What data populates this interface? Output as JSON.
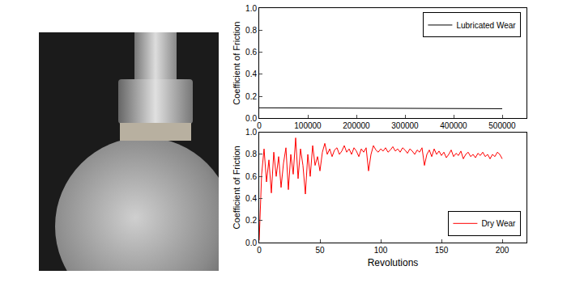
{
  "chart_data": [
    {
      "type": "line",
      "y_label": "Coefficient of Friction",
      "x": [
        0,
        50000,
        100000,
        150000,
        200000,
        250000,
        300000,
        350000,
        400000,
        450000,
        500000
      ],
      "series": [
        {
          "name": "Lubricated Wear",
          "color": "#000000",
          "values": [
            0.095,
            0.094,
            0.093,
            0.092,
            0.091,
            0.09,
            0.09,
            0.089,
            0.088,
            0.088,
            0.087
          ]
        }
      ],
      "xlim": [
        0,
        550000
      ],
      "xticks": [
        0,
        100000,
        200000,
        300000,
        400000,
        500000
      ],
      "ylim": [
        0,
        1
      ],
      "yticks": [
        {
          "value": 0,
          "label": "0.0"
        },
        {
          "value": 0.2,
          "label": "0.2"
        },
        {
          "value": 0.4,
          "label": "0.4"
        },
        {
          "value": 0.6,
          "label": "0.6"
        },
        {
          "value": 0.8,
          "label": "0.8"
        },
        {
          "value": 1,
          "label": "1.0"
        }
      ],
      "grid": false,
      "legend": "upper right"
    },
    {
      "type": "line",
      "x_label": "Revolutions",
      "y_label": "Coefficient of Friction",
      "x": [
        0,
        2,
        4,
        6,
        8,
        10,
        12,
        14,
        16,
        18,
        20,
        22,
        24,
        26,
        28,
        30,
        32,
        34,
        36,
        38,
        40,
        42,
        44,
        46,
        48,
        50,
        52,
        54,
        56,
        58,
        60,
        62,
        64,
        66,
        68,
        70,
        72,
        74,
        76,
        78,
        80,
        82,
        84,
        86,
        88,
        90,
        92,
        94,
        96,
        98,
        100,
        102,
        104,
        106,
        108,
        110,
        112,
        114,
        116,
        118,
        120,
        122,
        124,
        126,
        128,
        130,
        132,
        134,
        136,
        138,
        140,
        142,
        144,
        146,
        148,
        150,
        152,
        154,
        156,
        158,
        160,
        162,
        164,
        166,
        168,
        170,
        172,
        174,
        176,
        178,
        180,
        182,
        184,
        186,
        188,
        190,
        192,
        194,
        196,
        198,
        200
      ],
      "series": [
        {
          "name": "Dry Wear",
          "color": "#ff0000",
          "values": [
            0.02,
            0.62,
            0.85,
            0.55,
            0.75,
            0.45,
            0.82,
            0.6,
            0.78,
            0.5,
            0.72,
            0.86,
            0.48,
            0.8,
            0.62,
            0.95,
            0.58,
            0.85,
            0.7,
            0.44,
            0.8,
            0.6,
            0.88,
            0.7,
            0.78,
            0.65,
            0.82,
            0.9,
            0.8,
            0.85,
            0.78,
            0.84,
            0.86,
            0.8,
            0.83,
            0.88,
            0.82,
            0.85,
            0.8,
            0.86,
            0.83,
            0.78,
            0.85,
            0.82,
            0.86,
            0.65,
            0.8,
            0.88,
            0.84,
            0.82,
            0.85,
            0.83,
            0.86,
            0.82,
            0.84,
            0.87,
            0.83,
            0.85,
            0.82,
            0.86,
            0.84,
            0.81,
            0.85,
            0.83,
            0.8,
            0.84,
            0.82,
            0.86,
            0.7,
            0.8,
            0.84,
            0.78,
            0.85,
            0.8,
            0.83,
            0.79,
            0.82,
            0.77,
            0.8,
            0.84,
            0.78,
            0.81,
            0.79,
            0.83,
            0.76,
            0.8,
            0.82,
            0.78,
            0.8,
            0.77,
            0.81,
            0.79,
            0.82,
            0.78,
            0.8,
            0.76,
            0.8,
            0.78,
            0.82,
            0.8,
            0.76
          ]
        }
      ],
      "xlim": [
        0,
        220
      ],
      "xticks": [
        0,
        50,
        100,
        150,
        200
      ],
      "ylim": [
        0,
        1
      ],
      "yticks": [
        {
          "value": 0,
          "label": "0.0"
        },
        {
          "value": 0.2,
          "label": "0.2"
        },
        {
          "value": 0.4,
          "label": "0.4"
        },
        {
          "value": 0.6,
          "label": "0.6"
        },
        {
          "value": 0.8,
          "label": "0.8"
        },
        {
          "value": 1,
          "label": "1.0"
        }
      ],
      "grid": false,
      "legend": "lower right"
    }
  ]
}
